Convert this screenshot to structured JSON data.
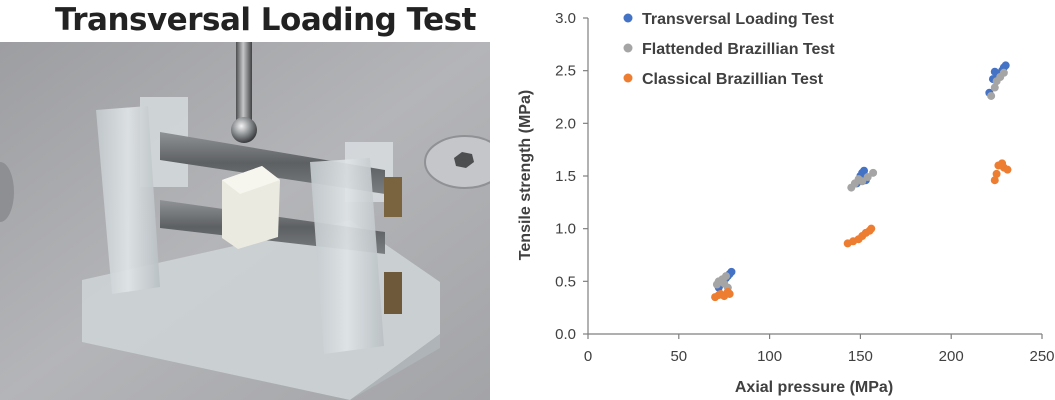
{
  "figure": {
    "left_title": "Transversal Loading Test"
  },
  "photo": {
    "subject": "transversal-loading-test-fixture",
    "colors": {
      "background": "#a8a9ac",
      "acrylic": "#c9cfd2",
      "specimen": "#e9e8de",
      "steel": "#6f7274"
    }
  },
  "chart_data": {
    "type": "scatter",
    "title": "",
    "xlabel": "Axial pressure (MPa)",
    "ylabel": "Tensile strength (MPa)",
    "xlim": [
      0,
      250
    ],
    "ylim": [
      0,
      3.0
    ],
    "xticks": [
      "0",
      "50",
      "100",
      "150",
      "200",
      "250"
    ],
    "yticks": [
      "0.0",
      "0.5",
      "1.0",
      "1.5",
      "2.0",
      "2.5",
      "3.0"
    ],
    "grid": false,
    "legend_position": "top-left",
    "series": [
      {
        "name": "Transversal Loading Test",
        "color": "#4472c4",
        "x": [
          72,
          74,
          75,
          76,
          77,
          78,
          79,
          148,
          149,
          150,
          151,
          152,
          153,
          221,
          223,
          224,
          226,
          228,
          229,
          230
        ],
        "y": [
          0.44,
          0.48,
          0.51,
          0.53,
          0.55,
          0.57,
          0.59,
          1.43,
          1.46,
          1.5,
          1.53,
          1.55,
          1.46,
          2.29,
          2.42,
          2.49,
          2.45,
          2.5,
          2.53,
          2.55
        ]
      },
      {
        "name": "Flattended Brazillian Test",
        "color": "#a5a5a5",
        "x": [
          71,
          72,
          74,
          75,
          76,
          77,
          145,
          147,
          149,
          151,
          154,
          157,
          222,
          224,
          225,
          227,
          229
        ],
        "y": [
          0.47,
          0.5,
          0.52,
          0.48,
          0.55,
          0.44,
          1.39,
          1.43,
          1.47,
          1.45,
          1.49,
          1.53,
          2.26,
          2.34,
          2.4,
          2.44,
          2.48
        ]
      },
      {
        "name": "Classical Brazillian Test",
        "color": "#ed7d31",
        "x": [
          70,
          72,
          73,
          75,
          77,
          78,
          143,
          146,
          149,
          151,
          153,
          155,
          156,
          224,
          225,
          226,
          228,
          229,
          231
        ],
        "y": [
          0.35,
          0.37,
          0.38,
          0.36,
          0.4,
          0.38,
          0.86,
          0.88,
          0.9,
          0.93,
          0.96,
          0.98,
          1.0,
          1.46,
          1.52,
          1.6,
          1.62,
          1.58,
          1.56
        ]
      }
    ]
  }
}
